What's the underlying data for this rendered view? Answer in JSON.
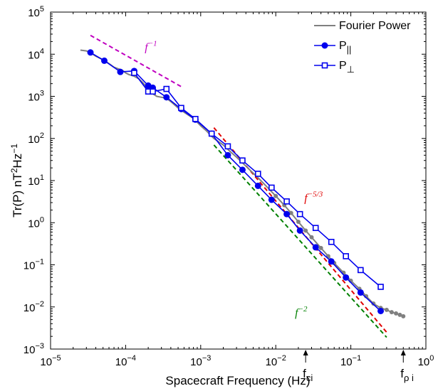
{
  "chart_data": {
    "type": "line",
    "scale": {
      "x": "log",
      "y": "log"
    },
    "xlim": [
      1e-05,
      1
    ],
    "ylim": [
      0.001,
      100000
    ],
    "xlabel": {
      "main": "Spacecraft Frequency (Hz)"
    },
    "ylabel": {
      "base": "Tr(P) nT",
      "exp1": "2",
      "mid": "Hz",
      "exp2": "−1"
    },
    "x_ticks": [
      {
        "value": 1e-05,
        "base": "10",
        "exp": "−5"
      },
      {
        "value": 0.0001,
        "base": "10",
        "exp": "−4"
      },
      {
        "value": 0.001,
        "base": "10",
        "exp": "−3"
      },
      {
        "value": 0.01,
        "base": "10",
        "exp": "−2"
      },
      {
        "value": 0.1,
        "base": "10",
        "exp": "−1"
      },
      {
        "value": 1,
        "base": "10",
        "exp": "0"
      }
    ],
    "y_ticks": [
      {
        "value": 0.001,
        "base": "10",
        "exp": "−3"
      },
      {
        "value": 0.01,
        "base": "10",
        "exp": "−2"
      },
      {
        "value": 0.1,
        "base": "10",
        "exp": "−1"
      },
      {
        "value": 1,
        "base": "10",
        "exp": "0"
      },
      {
        "value": 10,
        "base": "10",
        "exp": "1"
      },
      {
        "value": 100,
        "base": "10",
        "exp": "2"
      },
      {
        "value": 1000,
        "base": "10",
        "exp": "3"
      },
      {
        "value": 10000,
        "base": "10",
        "exp": "4"
      },
      {
        "value": 100000,
        "base": "10",
        "exp": "5"
      }
    ],
    "legend": {
      "position": "top-right",
      "entries": [
        {
          "series": "fourier",
          "label": "Fourier Power",
          "sub": ""
        },
        {
          "series": "p_par",
          "label": "P",
          "sub": "||"
        },
        {
          "series": "p_perp",
          "label": "P",
          "sub": "⊥"
        }
      ]
    },
    "series": [
      {
        "id": "fourier",
        "name": "Fourier Power",
        "color": "#808080",
        "x": [
          2.5e-05,
          3e-05,
          3.5e-05,
          4e-05,
          5e-05,
          6e-05,
          7e-05,
          8e-05,
          9e-05,
          0.0001,
          0.00011,
          0.00013,
          0.00015,
          0.00017,
          0.0002,
          0.00023,
          0.00026,
          0.0003,
          0.00035,
          0.0004,
          0.0005,
          0.0006,
          0.0007,
          0.0008,
          0.001,
          0.0012,
          0.0015,
          0.002,
          0.0025,
          0.003,
          0.004,
          0.005,
          0.006,
          0.008,
          0.01,
          0.013,
          0.016,
          0.02,
          0.025,
          0.03,
          0.04,
          0.05,
          0.06,
          0.08,
          0.1,
          0.13,
          0.16,
          0.2,
          0.25,
          0.3,
          0.35,
          0.4,
          0.45,
          0.5
        ],
        "y": [
          12500,
          12000,
          10500,
          9000,
          7400,
          6000,
          4900,
          4500,
          4200,
          3600,
          3300,
          3000,
          2600,
          2100,
          1500,
          1150,
          1000,
          950,
          900,
          750,
          530,
          420,
          350,
          300,
          200,
          150,
          100,
          70,
          48,
          36,
          22,
          15,
          11,
          6.5,
          4.3,
          2.6,
          1.7,
          1.05,
          0.65,
          0.45,
          0.25,
          0.16,
          0.11,
          0.065,
          0.042,
          0.027,
          0.018,
          0.012,
          0.0095,
          0.0085,
          0.0075,
          0.007,
          0.0065,
          0.006
        ]
      },
      {
        "id": "p_par",
        "name": "P||",
        "color": "#0000ee",
        "marker": "filled-circle",
        "x": [
          3.4e-05,
          5.2e-05,
          8.5e-05,
          0.00013,
          0.0002,
          0.00023,
          0.00035,
          0.00055,
          0.00085,
          0.0014,
          0.0023,
          0.0036,
          0.0058,
          0.0088,
          0.014,
          0.021,
          0.034,
          0.055,
          0.086,
          0.135,
          0.25
        ],
        "y": [
          11000,
          7000,
          3800,
          4000,
          1800,
          1600,
          950,
          500,
          280,
          130,
          40,
          18,
          7.5,
          3.5,
          1.6,
          0.65,
          0.26,
          0.12,
          0.05,
          0.022,
          0.008
        ]
      },
      {
        "id": "p_perp",
        "name": "P⊥",
        "color": "#0000ee",
        "marker": "open-square",
        "x": [
          0.00013,
          0.0002,
          0.00023,
          0.00035,
          0.00055,
          0.00085,
          0.0014,
          0.0023,
          0.0036,
          0.0058,
          0.0088,
          0.014,
          0.021,
          0.034,
          0.055,
          0.086,
          0.135,
          0.25
        ],
        "y": [
          3600,
          1300,
          1300,
          1500,
          530,
          290,
          130,
          65,
          30,
          14.5,
          6.8,
          3.2,
          1.6,
          0.75,
          0.35,
          0.16,
          0.075,
          0.03
        ]
      }
    ],
    "reference_lines": [
      {
        "id": "ref_m1",
        "label": "f",
        "exp": "−1",
        "color": "#c000c0",
        "x": [
          3.4e-05,
          0.00055
        ],
        "y": [
          28000,
          1700
        ],
        "label_at": {
          "x": 0.00018,
          "y": 12000
        }
      },
      {
        "id": "ref_m53",
        "label": "f",
        "exp": "−5/3",
        "color": "#e00000",
        "x": [
          0.0015,
          0.3
        ],
        "y": [
          180,
          0.0025
        ],
        "label_at": {
          "x": 0.024,
          "y": 3.2
        }
      },
      {
        "id": "ref_m2",
        "label": "f",
        "exp": "−2",
        "color": "#008000",
        "x": [
          0.0015,
          0.3
        ],
        "y": [
          70,
          0.0019
        ],
        "label_at": {
          "x": 0.018,
          "y": 0.006
        }
      }
    ],
    "markers": [
      {
        "id": "fci",
        "label": "f",
        "sub": "ci",
        "x": 0.025
      },
      {
        "id": "frhoi",
        "label": "f",
        "sub": "ρ i",
        "x": 0.5
      }
    ]
  }
}
